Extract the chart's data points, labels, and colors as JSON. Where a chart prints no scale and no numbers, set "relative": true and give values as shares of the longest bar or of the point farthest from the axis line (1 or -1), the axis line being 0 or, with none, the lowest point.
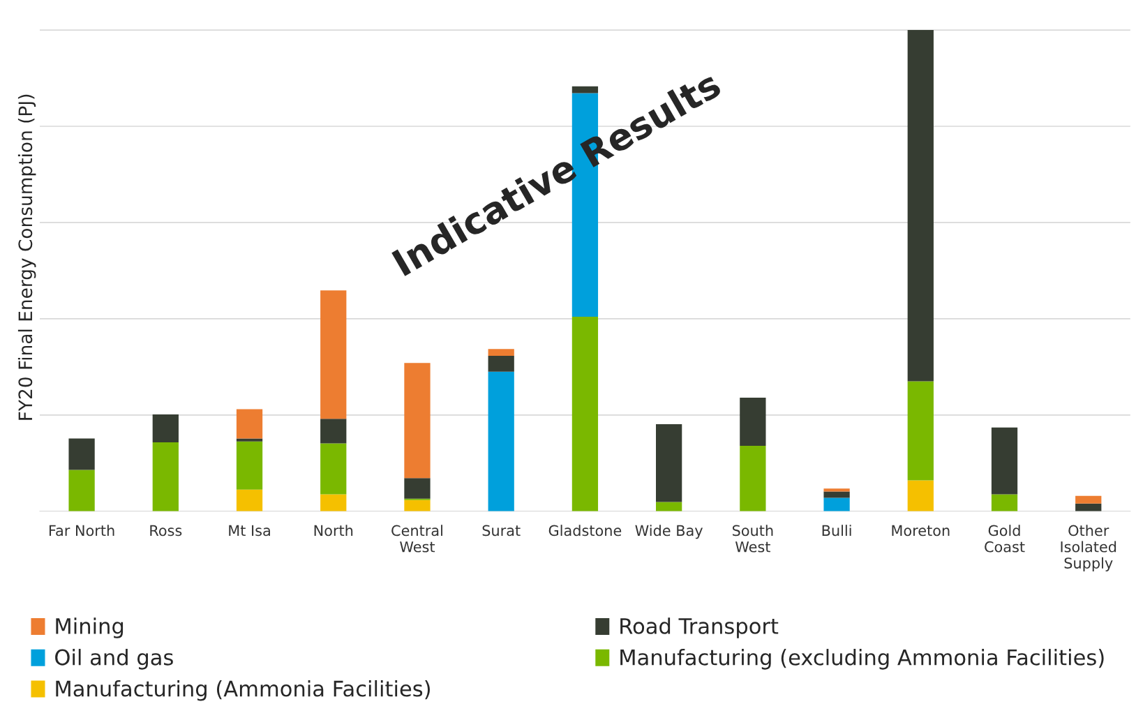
{
  "chart_data": {
    "type": "bar",
    "stacked": true,
    "relative": true,
    "ylabel": "FY20 Final Energy Consumption (PJ)",
    "categories": [
      "Far North",
      "Ross",
      "Mt Isa",
      "North",
      "Central\nWest",
      "Surat",
      "Gladstone",
      "Wide Bay",
      "South\nWest",
      "Bulli",
      "Moreton",
      "Gold\nCoast",
      "Other\nIsolated\nSupply"
    ],
    "series": [
      {
        "name": "Manufacturing (Ammonia Facilities)",
        "color": "#f5c000",
        "values": [
          null,
          null,
          0.045,
          0.035,
          0.023,
          null,
          null,
          null,
          null,
          null,
          0.064,
          null,
          null
        ]
      },
      {
        "name": "Manufacturing (excluding Ammonia Facilities)",
        "color": "#7ab800",
        "values": [
          0.086,
          0.143,
          0.1,
          0.106,
          0.003,
          null,
          0.404,
          0.019,
          0.136,
          null,
          0.206,
          0.035,
          null
        ]
      },
      {
        "name": "Oil and gas",
        "color": "#00a0dc",
        "values": [
          null,
          null,
          null,
          null,
          null,
          0.29,
          0.465,
          null,
          null,
          0.028,
          null,
          null,
          null
        ]
      },
      {
        "name": "Road Transport",
        "color": "#363d32",
        "values": [
          0.065,
          0.058,
          0.006,
          0.051,
          0.043,
          0.033,
          0.014,
          0.162,
          0.1,
          0.013,
          0.73,
          0.139,
          0.016
        ]
      },
      {
        "name": "Mining",
        "color": "#ed7d31",
        "values": [
          null,
          null,
          0.061,
          0.267,
          0.239,
          0.014,
          null,
          null,
          null,
          0.006,
          null,
          null,
          0.016
        ]
      }
    ],
    "annotations": [
      "Indicative Results"
    ],
    "grid": "y",
    "legend": "bottom"
  }
}
